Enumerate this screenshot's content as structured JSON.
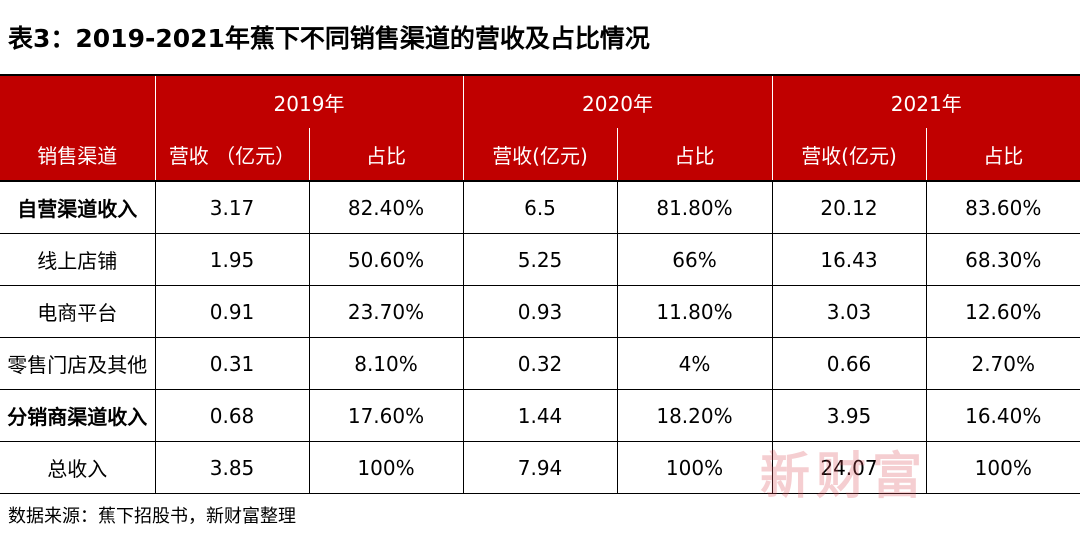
{
  "title": "表3：2019-2021年蕉下不同销售渠道的营收及占比情况",
  "colors": {
    "header_bg": "#c00000",
    "header_text": "#ffffff",
    "watermark": "#dc505a"
  },
  "table": {
    "years": [
      "2019年",
      "2020年",
      "2021年"
    ],
    "channel_header": "销售渠道",
    "subheaders": [
      "营收 （亿元）",
      "占比",
      "营收(亿元)",
      "占比",
      "营收(亿元)",
      "占比"
    ],
    "rows": [
      {
        "label": "自营渠道收入",
        "bold": true,
        "values": [
          "3.17",
          "82.40%",
          "6.5",
          "81.80%",
          "20.12",
          "83.60%"
        ]
      },
      {
        "label": "线上店铺",
        "bold": false,
        "values": [
          "1.95",
          "50.60%",
          "5.25",
          "66%",
          "16.43",
          "68.30%"
        ]
      },
      {
        "label": "电商平台",
        "bold": false,
        "values": [
          "0.91",
          "23.70%",
          "0.93",
          "11.80%",
          "3.03",
          "12.60%"
        ]
      },
      {
        "label": "零售门店及其他",
        "bold": false,
        "values": [
          "0.31",
          "8.10%",
          "0.32",
          "4%",
          "0.66",
          "2.70%"
        ]
      },
      {
        "label": "分销商渠道收入",
        "bold": true,
        "values": [
          "0.68",
          "17.60%",
          "1.44",
          "18.20%",
          "3.95",
          "16.40%"
        ]
      },
      {
        "label": "总收入",
        "bold": false,
        "values": [
          "3.85",
          "100%",
          "7.94",
          "100%",
          "24.07",
          "100%"
        ]
      }
    ]
  },
  "watermark": "新财富",
  "source": "数据来源：蕉下招股书，新财富整理"
}
